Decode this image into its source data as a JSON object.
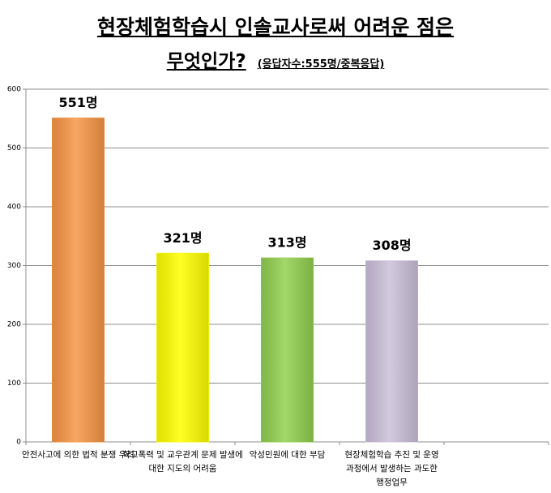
{
  "chart_data": {
    "type": "bar",
    "title": [
      "현장체험학습시 인솔교사로써 어려운 점은",
      "무엇인가?"
    ],
    "subtitle": "(응답자수:555명/중복응답)",
    "categories": [
      "안전사고에 의한 법적 분쟁 우려",
      "학교폭력 및 교우관계 문제 발생에 대한 지도의 어려움",
      "악성민원에 대한 부담",
      "현장체험학습 추진 및 운영 과정에서 발생하는 과도한 행정업무",
      null
    ],
    "values": [
      551,
      321,
      313,
      308,
      null
    ],
    "value_labels": [
      "551명",
      "321명",
      "313명",
      "308명",
      null
    ],
    "colors": [
      "#f79646",
      "#ffff00",
      "#92d050",
      "#ccc0da",
      null
    ],
    "ylim": [
      0,
      600
    ],
    "yticks": [
      0,
      100,
      200,
      300,
      400,
      500,
      600
    ],
    "grid": true
  }
}
